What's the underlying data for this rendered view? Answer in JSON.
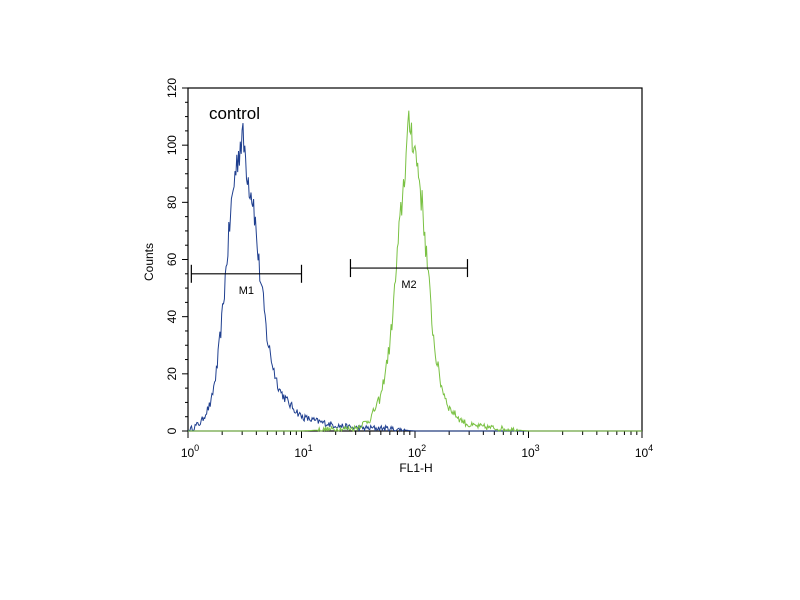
{
  "chart_data": {
    "type": "line",
    "title": "",
    "xlabel": "FL1-H",
    "ylabel": "Counts",
    "x_scale": "log",
    "xlim": [
      1,
      10000
    ],
    "ylim": [
      0,
      120
    ],
    "y_ticks": [
      "0",
      "20",
      "40",
      "60",
      "80",
      "100",
      "120"
    ],
    "x_ticks": [
      {
        "base": "10",
        "exp": "0"
      },
      {
        "base": "10",
        "exp": "1"
      },
      {
        "base": "10",
        "exp": "2"
      },
      {
        "base": "10",
        "exp": "3"
      },
      {
        "base": "10",
        "exp": "4"
      }
    ],
    "grid": false,
    "annotation": "control",
    "series": [
      {
        "color": "#1f3f8f",
        "x": [
          1.0,
          1.3,
          1.6,
          1.8,
          2.0,
          2.2,
          2.4,
          2.6,
          2.8,
          3.0,
          3.2,
          3.4,
          3.6,
          3.8,
          4.0,
          4.3,
          4.7,
          5.0,
          5.5,
          6.0,
          6.5,
          7.0,
          8.0,
          9.0,
          10.0,
          12.0,
          15.0,
          20.0,
          30.0,
          50.0,
          100.0,
          300.0,
          1000.0,
          10000.0
        ],
        "y": [
          0,
          3,
          10,
          22,
          40,
          60,
          78,
          90,
          98,
          103,
          97,
          88,
          84,
          80,
          68,
          55,
          42,
          32,
          24,
          18,
          14,
          12,
          9,
          7,
          5,
          4,
          3,
          2,
          1,
          1,
          0,
          0,
          0,
          0
        ]
      },
      {
        "color": "#7ac143",
        "x": [
          1.0,
          10.0,
          30.0,
          40.0,
          50.0,
          60.0,
          65.0,
          70.0,
          75.0,
          80.0,
          85.0,
          90.0,
          95.0,
          100.0,
          110.0,
          120.0,
          130.0,
          140.0,
          150.0,
          170.0,
          200.0,
          250.0,
          300.0,
          500.0,
          1000.0,
          10000.0
        ],
        "y": [
          0,
          0,
          1,
          4,
          12,
          30,
          45,
          62,
          76,
          88,
          100,
          108,
          104,
          98,
          88,
          72,
          56,
          40,
          28,
          16,
          8,
          4,
          2,
          1,
          0,
          0
        ]
      }
    ],
    "markers": [
      {
        "label": "M1",
        "x_start": 1.07,
        "x_end": 10.0,
        "y": 55
      },
      {
        "label": "M2",
        "x_start": 27.0,
        "x_end": 290.0,
        "y": 57
      }
    ]
  }
}
